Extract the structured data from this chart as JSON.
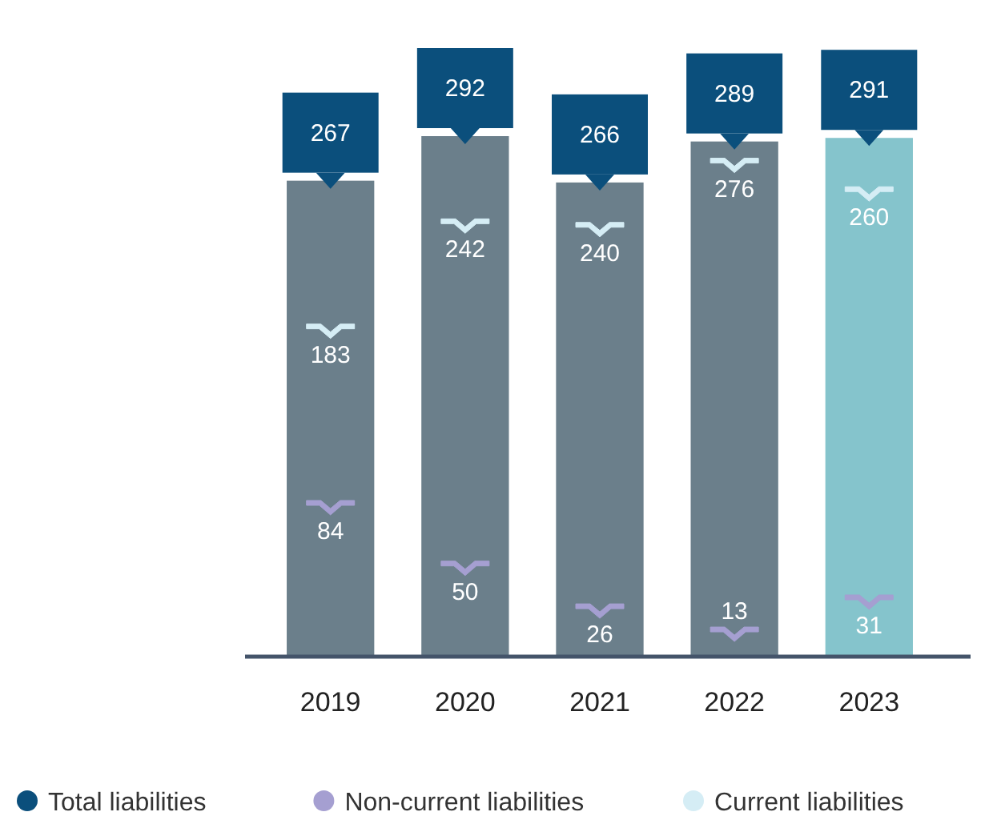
{
  "chart_data": {
    "type": "bar",
    "categories": [
      "2019",
      "2020",
      "2021",
      "2022",
      "2023"
    ],
    "series": [
      {
        "colors": [
          "#6b7f8b",
          "#6b7f8b",
          "#6b7f8b",
          "#6b7f8b",
          "#85c4cc"
        ],
        "values": [
          267,
          292,
          266,
          289,
          291
        ]
      },
      {
        "name": "Total liabilities",
        "type": "scatter",
        "marker": "triangle",
        "color": "#0b4f7c",
        "values": [
          267,
          292,
          266,
          289,
          291
        ],
        "value_labels": [
          "267",
          "292",
          "266",
          "289",
          "291"
        ]
      },
      {
        "name": "Non-current liabilities",
        "type": "scatter",
        "color": "#a59fd1",
        "values": [
          84,
          50,
          26,
          13,
          31
        ],
        "value_labels": [
          "84",
          "50",
          "26",
          "13",
          "31"
        ]
      },
      {
        "name": "Current liabilities",
        "type": "scatter",
        "color": "#d5edf5",
        "values": [
          183,
          242,
          240,
          276,
          260
        ],
        "value_labels": [
          "183",
          "242",
          "240",
          "276",
          "260"
        ]
      }
    ],
    "legend": "bottom"
  }
}
